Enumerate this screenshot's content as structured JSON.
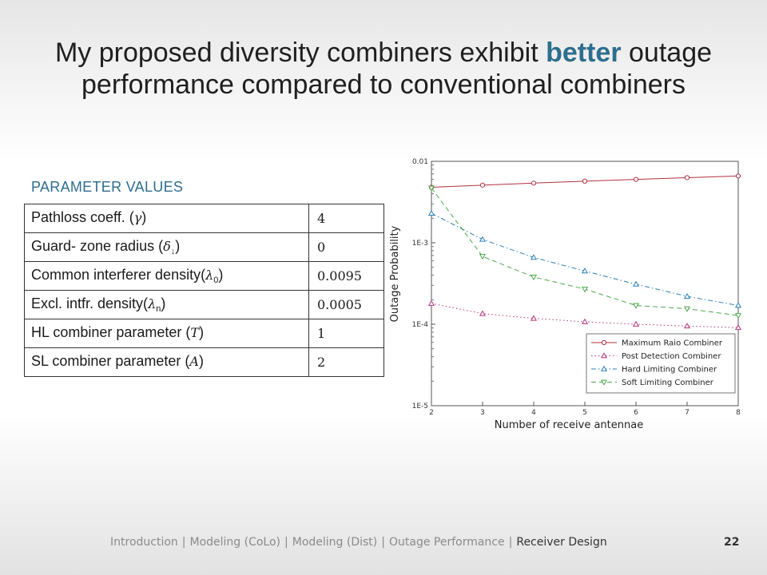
{
  "title": {
    "before": "My proposed diversity combiners exhibit ",
    "accent": "better",
    "after": " outage performance compared to conventional combiners"
  },
  "parameters": {
    "heading": "PARAMETER VALUES",
    "rows": [
      {
        "name": "Pathloss coeff. (",
        "symbol": "γ",
        "sub": "",
        "close": ")",
        "value": "4"
      },
      {
        "name": "Guard- zone radius (",
        "symbol": "δ",
        "sub": "↓",
        "close": ")",
        "value": "0"
      },
      {
        "name": "Common interferer density(",
        "symbol": "λ",
        "sub": "0",
        "close": ")",
        "value": "0.0095"
      },
      {
        "name": "Excl. intfr. density(",
        "symbol": "λ",
        "sub": "n",
        "close": ")",
        "value": "0.0005"
      },
      {
        "name": "HL combiner parameter (",
        "symbol": "T",
        "sub": "",
        "close": ")",
        "value": "1"
      },
      {
        "name": "SL combiner parameter (",
        "symbol": "A",
        "sub": "",
        "close": ")",
        "value": "2"
      }
    ]
  },
  "chart_data": {
    "type": "line",
    "xlabel": "Number of receive antennae",
    "ylabel": "Outage Probability",
    "x": [
      2,
      3,
      4,
      5,
      6,
      7,
      8
    ],
    "xlim": [
      2,
      8
    ],
    "ylim": [
      1e-05,
      0.01
    ],
    "yscale": "log",
    "yticks": [
      0.01,
      0.001,
      0.0001,
      1e-05
    ],
    "ytick_labels": [
      "0.01",
      "1E-3",
      "1E-4",
      "1E-5"
    ],
    "legend_position": "bottom-right",
    "grid": false,
    "series": [
      {
        "name": "Maximum Raio Combiner",
        "color": "#b03040",
        "marker": "circle",
        "dash": "solid",
        "values": [
          0.0048,
          0.0051,
          0.0054,
          0.0057,
          0.006,
          0.0063,
          0.0066
        ]
      },
      {
        "name": "Post Detection Combiner",
        "color": "#b5357a",
        "marker": "triangle-up",
        "dash": "dotted",
        "values": [
          0.00018,
          0.000135,
          0.000118,
          0.000107,
          0.0001,
          9.5e-05,
          9.1e-05
        ]
      },
      {
        "name": "Hard Limiting Combiner",
        "color": "#2a7fb8",
        "marker": "triangle-up",
        "dash": "dashdot",
        "values": [
          0.0023,
          0.0011,
          0.00066,
          0.00045,
          0.00031,
          0.00022,
          0.00017
        ]
      },
      {
        "name": "Soft Limiting Combiner",
        "color": "#4aa84a",
        "marker": "triangle-down",
        "dash": "dashed",
        "values": [
          0.0047,
          0.00068,
          0.00038,
          0.00027,
          0.00017,
          0.000155,
          0.000128
        ]
      }
    ]
  },
  "footer": {
    "nav": [
      "Introduction",
      "Modeling (CoLo)",
      "Modeling (Dist)",
      "Outage Performance",
      "Receiver Design"
    ],
    "active": "Receiver Design",
    "page": "22"
  }
}
